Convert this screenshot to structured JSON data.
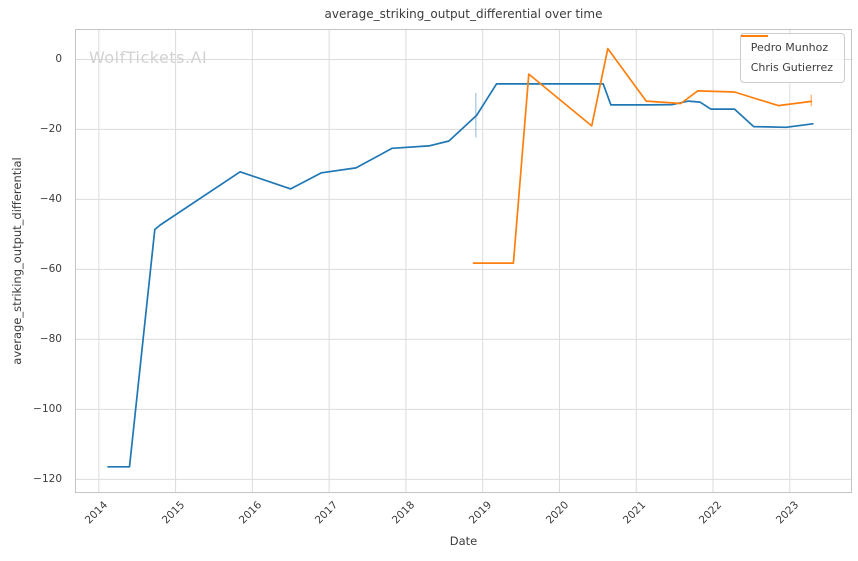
{
  "watermark": "WolfTickets.AI",
  "colors": {
    "text": "#3c3c3c",
    "grid": "#dcdcdc",
    "spine": "#c4c4c4",
    "watermark": "#d2d2d2",
    "legend_border": "#cccccc",
    "series_blue": "#1f77b4",
    "series_orange": "#ff7f0e"
  },
  "chart_data": {
    "type": "line",
    "title": "average_striking_output_differential over time",
    "xlabel": "Date",
    "ylabel": "average_striking_output_differential",
    "grid": true,
    "legend_position": "upper right",
    "x_ticks": [
      2014,
      2015,
      2016,
      2017,
      2018,
      2019,
      2020,
      2021,
      2022,
      2023
    ],
    "x_tick_labels": [
      "2014",
      "2015",
      "2016",
      "2017",
      "2018",
      "2019",
      "2020",
      "2021",
      "2022",
      "2023"
    ],
    "y_ticks": [
      0,
      -20,
      -40,
      -60,
      -80,
      -100,
      -120
    ],
    "y_tick_labels": [
      "0",
      "−20",
      "−40",
      "−60",
      "−80",
      "−100",
      "−120"
    ],
    "xlim": [
      2013.69,
      2023.81
    ],
    "ylim": [
      -123.9,
      8.7
    ],
    "series": [
      {
        "name": "Pedro Munhoz",
        "color": "#1f77b4",
        "x": [
          2014.12,
          2014.4,
          2014.73,
          2014.8,
          2015.84,
          2016.5,
          2016.9,
          2017.35,
          2017.82,
          2018.3,
          2018.56,
          2018.92,
          2019.18,
          2019.6,
          2020.1,
          2020.57,
          2020.67,
          2021.15,
          2021.47,
          2021.68,
          2021.83,
          2021.97,
          2022.28,
          2022.53,
          2022.95,
          2023.3
        ],
        "y": [
          -116.4,
          -116.4,
          -48.6,
          -47.3,
          -32.1,
          -37.0,
          -32.4,
          -31.0,
          -25.4,
          -24.7,
          -23.3,
          -16.0,
          -7.0,
          -7.0,
          -7.0,
          -7.0,
          -13.0,
          -13.0,
          -12.9,
          -11.9,
          -12.2,
          -14.2,
          -14.2,
          -19.2,
          -19.4,
          -18.4
        ]
      },
      {
        "name": "Chris Gutierrez",
        "color": "#ff7f0e",
        "x": [
          2018.88,
          2019.4,
          2019.6,
          2020.42,
          2020.63,
          2021.13,
          2021.4,
          2021.58,
          2021.8,
          2022.28,
          2022.85,
          2023.28
        ],
        "y": [
          -58.2,
          -58.2,
          -4.2,
          -19.0,
          3.1,
          -11.9,
          -12.3,
          -12.6,
          -9.0,
          -9.3,
          -13.2,
          -12.0
        ]
      }
    ],
    "markers": [
      {
        "type": "vline",
        "x": 2018.91,
        "y_from": -22.3,
        "y_to": -9.6,
        "color": "#1f77b4",
        "opacity": 0.35
      },
      {
        "type": "vline",
        "x": 2023.28,
        "y_from": -13.4,
        "y_to": -10.1,
        "color": "#ff7f0e",
        "opacity": 0.55
      }
    ]
  }
}
